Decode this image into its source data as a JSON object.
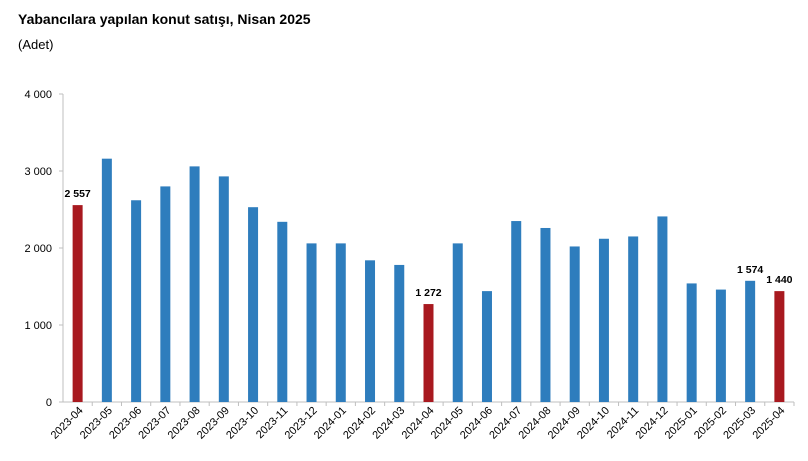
{
  "header": {
    "title": "Yabancılara yapılan konut satışı, Nisan 2025",
    "subtitle": "(Adet)"
  },
  "colors": {
    "bar": "#2e7dbd",
    "highlight": "#a8191f",
    "axis": "#bfbfbf"
  },
  "chart_data": {
    "type": "bar",
    "title": "Yabancılara yapılan konut satışı, Nisan 2025",
    "subtitle": "(Adet)",
    "xlabel": "",
    "ylabel": "",
    "ylim": [
      0,
      4000
    ],
    "yticks": [
      0,
      1000,
      2000,
      3000,
      4000
    ],
    "ytick_labels": [
      "0",
      "1 000",
      "2 000",
      "3 000",
      "4 000"
    ],
    "grid": false,
    "legend": "none",
    "categories": [
      "2023-04",
      "2023-05",
      "2023-06",
      "2023-07",
      "2023-08",
      "2023-09",
      "2023-10",
      "2023-11",
      "2023-12",
      "2024-01",
      "2024-02",
      "2024-03",
      "2024-04",
      "2024-05",
      "2024-06",
      "2024-07",
      "2024-08",
      "2024-09",
      "2024-10",
      "2024-11",
      "2024-12",
      "2025-01",
      "2025-02",
      "2025-03",
      "2025-04"
    ],
    "values": [
      2557,
      3160,
      2620,
      2800,
      3060,
      2930,
      2530,
      2340,
      2060,
      2060,
      1840,
      1780,
      1272,
      2060,
      1440,
      2350,
      2260,
      2020,
      2120,
      2150,
      2410,
      1540,
      1460,
      1574,
      1440
    ],
    "highlighted": [
      "2023-04",
      "2024-04",
      "2025-04"
    ],
    "data_labels": [
      {
        "category": "2023-04",
        "text": "2 557"
      },
      {
        "category": "2024-04",
        "text": "1 272"
      },
      {
        "category": "2025-03",
        "text": "1 574"
      },
      {
        "category": "2025-04",
        "text": "1 440"
      }
    ]
  }
}
